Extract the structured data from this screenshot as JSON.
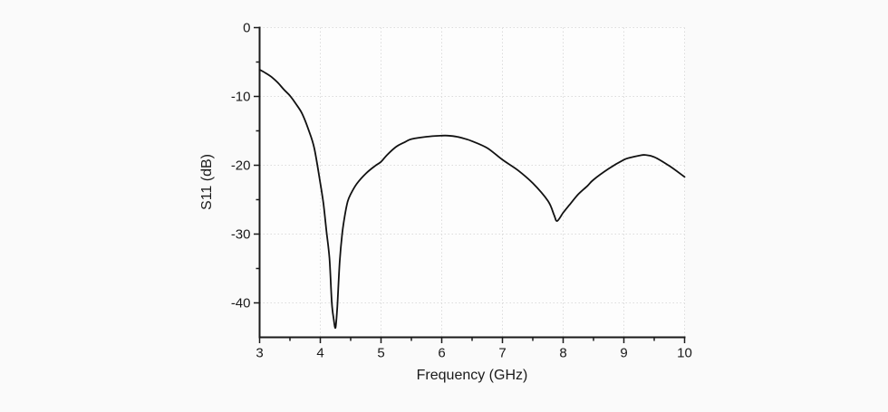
{
  "page": {
    "background": "#fafafa",
    "plot_background": "#fdfdfd",
    "ink_color": "#1a1a1a"
  },
  "chart_data": {
    "type": "line",
    "title": "",
    "xlabel": "Frequency (GHz)",
    "ylabel": "S11 (dB)",
    "xlim": [
      3,
      10
    ],
    "ylim": [
      -45,
      0
    ],
    "x_major_ticks": [
      3,
      4,
      5,
      6,
      7,
      8,
      9,
      10
    ],
    "x_minor_ticks": [
      3.5,
      4.5,
      5.5,
      6.5,
      7.5,
      8.5,
      9.5
    ],
    "y_major_ticks": [
      0,
      -10,
      -20,
      -30,
      -40
    ],
    "y_minor_ticks": [
      -5,
      -15,
      -25,
      -35
    ],
    "grid": {
      "show": true,
      "style": "dotted",
      "color": "#dcdcdc",
      "on": "major-ticks"
    },
    "legend": {
      "show": false
    },
    "line_color": "#111111",
    "series": [
      {
        "name": "S11",
        "points": [
          [
            3.0,
            -6.1
          ],
          [
            3.1,
            -6.6
          ],
          [
            3.2,
            -7.2
          ],
          [
            3.3,
            -8.0
          ],
          [
            3.4,
            -9.0
          ],
          [
            3.5,
            -9.9
          ],
          [
            3.6,
            -11.1
          ],
          [
            3.7,
            -12.5
          ],
          [
            3.8,
            -14.7
          ],
          [
            3.9,
            -17.5
          ],
          [
            4.0,
            -22.6
          ],
          [
            4.05,
            -25.5
          ],
          [
            4.1,
            -29.5
          ],
          [
            4.15,
            -33.5
          ],
          [
            4.19,
            -40.0
          ],
          [
            4.22,
            -42.3
          ],
          [
            4.25,
            -43.6
          ],
          [
            4.28,
            -40.5
          ],
          [
            4.32,
            -34.0
          ],
          [
            4.36,
            -30.0
          ],
          [
            4.4,
            -27.5
          ],
          [
            4.45,
            -25.3
          ],
          [
            4.5,
            -24.2
          ],
          [
            4.6,
            -22.7
          ],
          [
            4.75,
            -21.2
          ],
          [
            4.9,
            -20.1
          ],
          [
            5.0,
            -19.5
          ],
          [
            5.1,
            -18.5
          ],
          [
            5.25,
            -17.3
          ],
          [
            5.4,
            -16.6
          ],
          [
            5.5,
            -16.2
          ],
          [
            5.75,
            -15.85
          ],
          [
            6.0,
            -15.7
          ],
          [
            6.1,
            -15.7
          ],
          [
            6.25,
            -15.85
          ],
          [
            6.4,
            -16.2
          ],
          [
            6.5,
            -16.5
          ],
          [
            6.75,
            -17.5
          ],
          [
            7.0,
            -19.2
          ],
          [
            7.25,
            -20.7
          ],
          [
            7.5,
            -22.6
          ],
          [
            7.75,
            -25.2
          ],
          [
            7.85,
            -27.2
          ],
          [
            7.9,
            -28.1
          ],
          [
            8.0,
            -26.9
          ],
          [
            8.1,
            -25.8
          ],
          [
            8.25,
            -24.2
          ],
          [
            8.4,
            -23.0
          ],
          [
            8.5,
            -22.1
          ],
          [
            8.75,
            -20.5
          ],
          [
            9.0,
            -19.2
          ],
          [
            9.1,
            -18.9
          ],
          [
            9.25,
            -18.6
          ],
          [
            9.35,
            -18.5
          ],
          [
            9.5,
            -18.8
          ],
          [
            9.75,
            -20.1
          ],
          [
            10.0,
            -21.7
          ]
        ]
      }
    ]
  }
}
